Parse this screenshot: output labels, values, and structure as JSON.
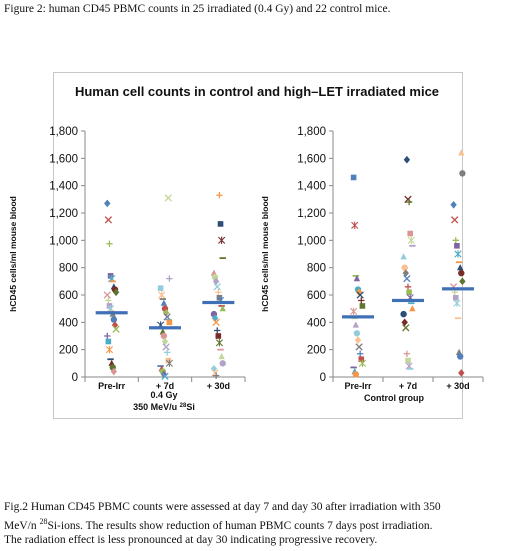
{
  "top_caption": "Figure 2: human CD45 PBMC counts in 25 irradiated (0.4 Gy) and 22 control mice.",
  "bottom_caption": {
    "line1": "Fig.2 Human CD45 PBMC counts were assessed at day 7 and day 30 after irradiation with 350",
    "line2_a": "MeV/n ",
    "line2_sup": "28",
    "line2_b": "Si-ions. The results show reduction of human PBMC counts 7 days post irradiation.",
    "line3": "The radiation effect is less pronounced at day 30 indicating progressive recovery."
  },
  "chart_data": [
    {
      "type": "scatter",
      "title": "Human cell counts in control and high–LET irradiated mice",
      "ylabel": "hCD45 cells/ml mouse blood",
      "ylim": [
        0,
        1800
      ],
      "yticks": [
        0,
        200,
        400,
        600,
        800,
        1000,
        1200,
        1400,
        1600,
        1800
      ],
      "categories": [
        "Pre-Irr",
        "+ 7d",
        "+ 30d"
      ],
      "group_label_line1": "0.4 Gy",
      "group_label_line2_a": "350 MeV/u ",
      "group_label_line2_sup": "28",
      "group_label_line2_b": "Si",
      "means": [
        470,
        360,
        545
      ],
      "colors": [
        "#4f81bd",
        "#c0504d",
        "#9bbb59",
        "#8064a2",
        "#4bacc6",
        "#f79646",
        "#2c4d75",
        "#772c2a",
        "#5f7530",
        "#d99694",
        "#c3d69b",
        "#b3a2c7",
        "#93cddd",
        "#fac090",
        "#7f7f7f"
      ],
      "points": [
        [
          0,
          1270
        ],
        [
          0,
          1150
        ],
        [
          0,
          975
        ],
        [
          0,
          740
        ],
        [
          0,
          720
        ],
        [
          0,
          700
        ],
        [
          0,
          660
        ],
        [
          0,
          640
        ],
        [
          0,
          620
        ],
        [
          0,
          600
        ],
        [
          0,
          560
        ],
        [
          0,
          520
        ],
        [
          0,
          500
        ],
        [
          0,
          480
        ],
        [
          0,
          460
        ],
        [
          0,
          420
        ],
        [
          0,
          380
        ],
        [
          0,
          350
        ],
        [
          0,
          300
        ],
        [
          0,
          260
        ],
        [
          0,
          200
        ],
        [
          0,
          130
        ],
        [
          0,
          100
        ],
        [
          0,
          70
        ],
        [
          0,
          40
        ],
        [
          1,
          1310
        ],
        [
          1,
          720
        ],
        [
          1,
          650
        ],
        [
          1,
          600
        ],
        [
          1,
          570
        ],
        [
          1,
          540
        ],
        [
          1,
          500
        ],
        [
          1,
          470
        ],
        [
          1,
          440
        ],
        [
          1,
          420
        ],
        [
          1,
          400
        ],
        [
          1,
          380
        ],
        [
          1,
          360
        ],
        [
          1,
          330
        ],
        [
          1,
          300
        ],
        [
          1,
          260
        ],
        [
          1,
          220
        ],
        [
          1,
          180
        ],
        [
          1,
          120
        ],
        [
          1,
          100
        ],
        [
          1,
          80
        ],
        [
          1,
          60
        ],
        [
          1,
          40
        ],
        [
          1,
          20
        ],
        [
          1,
          5
        ],
        [
          2,
          1330
        ],
        [
          2,
          1120
        ],
        [
          2,
          1000
        ],
        [
          2,
          870
        ],
        [
          2,
          760
        ],
        [
          2,
          730
        ],
        [
          2,
          700
        ],
        [
          2,
          660
        ],
        [
          2,
          620
        ],
        [
          2,
          580
        ],
        [
          2,
          560
        ],
        [
          2,
          520
        ],
        [
          2,
          500
        ],
        [
          2,
          460
        ],
        [
          2,
          430
        ],
        [
          2,
          400
        ],
        [
          2,
          340
        ],
        [
          2,
          300
        ],
        [
          2,
          250
        ],
        [
          2,
          200
        ],
        [
          2,
          150
        ],
        [
          2,
          100
        ],
        [
          2,
          60
        ],
        [
          2,
          30
        ],
        [
          2,
          10
        ]
      ]
    },
    {
      "type": "scatter",
      "ylabel": "hCD45 cells/ml mouse blood",
      "ylim": [
        0,
        1800
      ],
      "yticks": [
        0,
        200,
        400,
        600,
        800,
        1000,
        1200,
        1400,
        1600,
        1800
      ],
      "categories": [
        "Pre-Irr",
        "+ 7d",
        "+ 30d"
      ],
      "group_label": "Control group",
      "means": [
        440,
        560,
        645
      ],
      "colors": [
        "#4f81bd",
        "#c0504d",
        "#9bbb59",
        "#8064a2",
        "#4bacc6",
        "#f79646",
        "#2c4d75",
        "#772c2a",
        "#5f7530",
        "#d99694",
        "#c3d69b",
        "#b3a2c7",
        "#93cddd",
        "#fac090",
        "#7f7f7f"
      ],
      "points": [
        [
          0,
          1460
        ],
        [
          0,
          1110
        ],
        [
          0,
          740
        ],
        [
          0,
          720
        ],
        [
          0,
          640
        ],
        [
          0,
          620
        ],
        [
          0,
          600
        ],
        [
          0,
          560
        ],
        [
          0,
          520
        ],
        [
          0,
          480
        ],
        [
          0,
          430
        ],
        [
          0,
          380
        ],
        [
          0,
          320
        ],
        [
          0,
          270
        ],
        [
          0,
          220
        ],
        [
          0,
          170
        ],
        [
          0,
          130
        ],
        [
          0,
          100
        ],
        [
          0,
          70
        ],
        [
          0,
          40
        ],
        [
          0,
          20
        ],
        [
          1,
          1590
        ],
        [
          1,
          1300
        ],
        [
          1,
          1280
        ],
        [
          1,
          1050
        ],
        [
          1,
          1000
        ],
        [
          1,
          960
        ],
        [
          1,
          880
        ],
        [
          1,
          800
        ],
        [
          1,
          760
        ],
        [
          1,
          720
        ],
        [
          1,
          660
        ],
        [
          1,
          620
        ],
        [
          1,
          580
        ],
        [
          1,
          540
        ],
        [
          1,
          500
        ],
        [
          1,
          460
        ],
        [
          1,
          400
        ],
        [
          1,
          360
        ],
        [
          1,
          170
        ],
        [
          1,
          120
        ],
        [
          1,
          80
        ],
        [
          1,
          60
        ],
        [
          2,
          1640
        ],
        [
          2,
          1490
        ],
        [
          2,
          1260
        ],
        [
          2,
          1150
        ],
        [
          2,
          1000
        ],
        [
          2,
          960
        ],
        [
          2,
          900
        ],
        [
          2,
          840
        ],
        [
          2,
          800
        ],
        [
          2,
          760
        ],
        [
          2,
          700
        ],
        [
          2,
          660
        ],
        [
          2,
          620
        ],
        [
          2,
          580
        ],
        [
          2,
          540
        ],
        [
          2,
          430
        ],
        [
          2,
          180
        ],
        [
          2,
          150
        ],
        [
          2,
          30
        ]
      ]
    }
  ]
}
